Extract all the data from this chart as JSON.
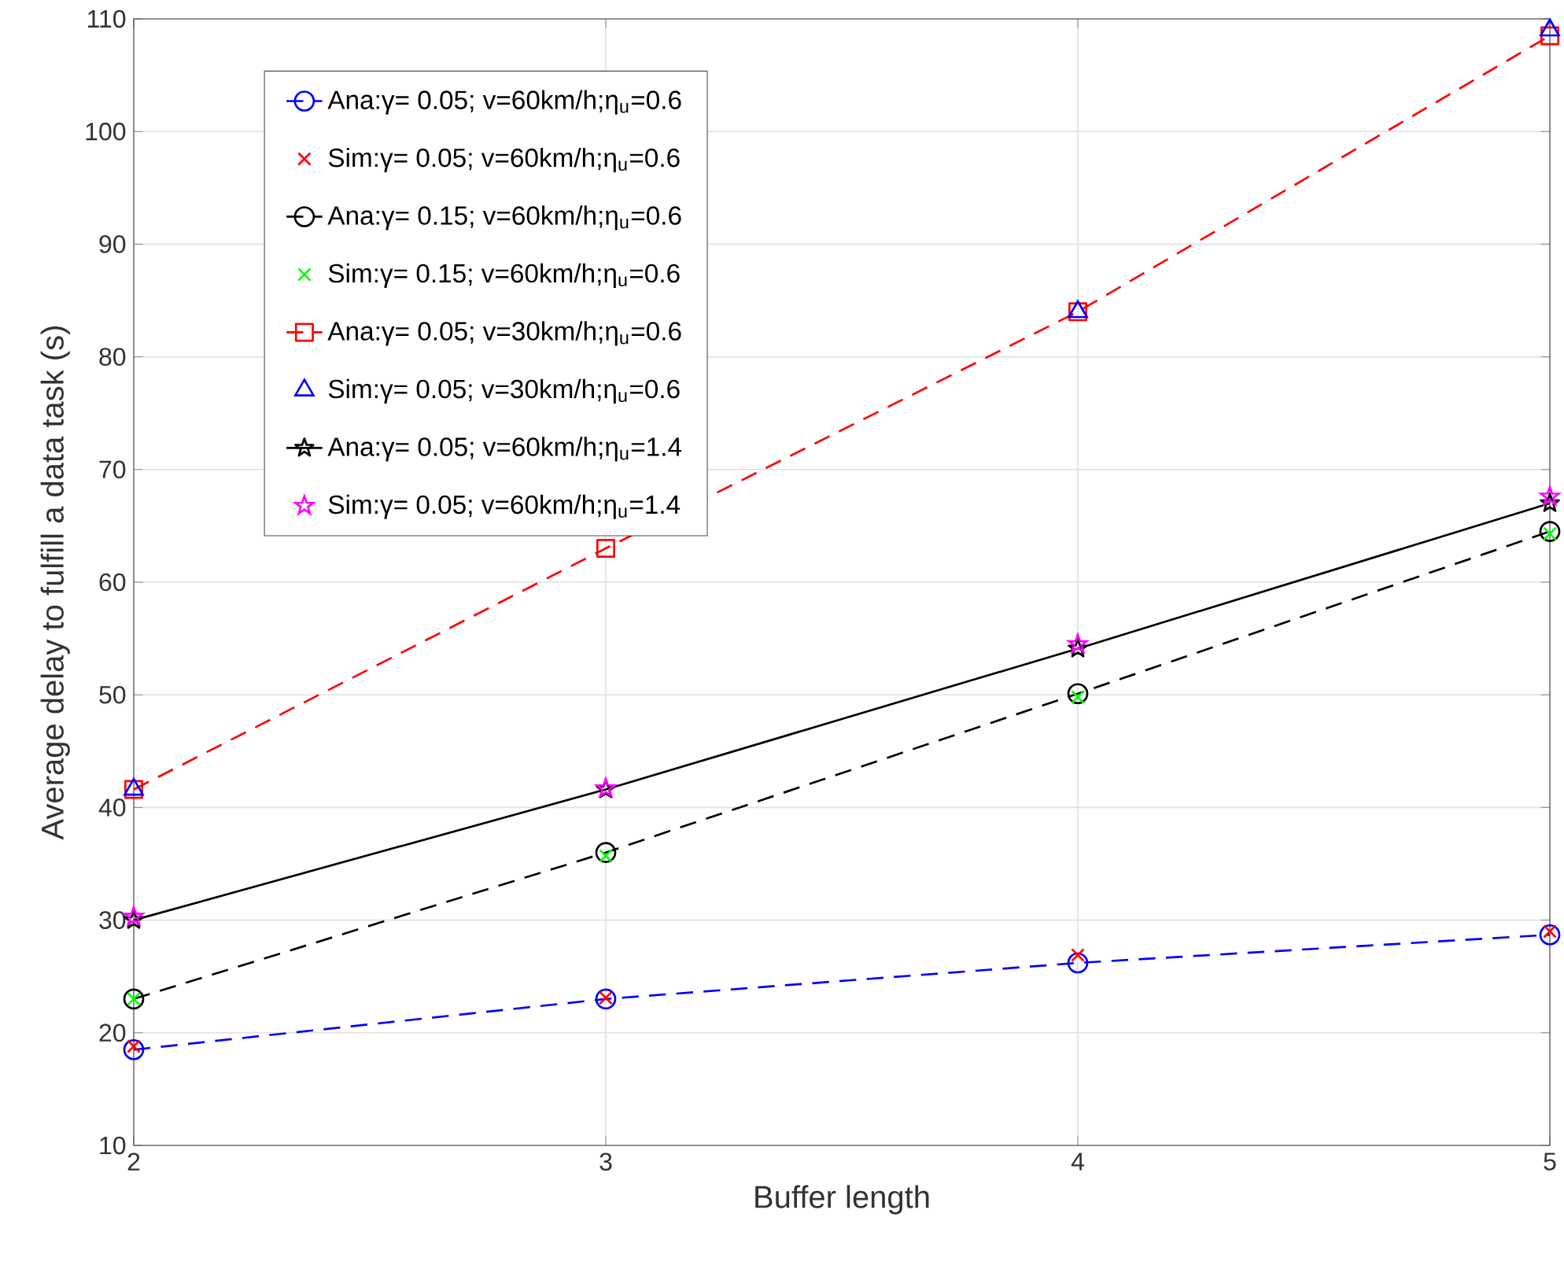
{
  "chart_data": {
    "type": "line",
    "xlabel": "Buffer length",
    "ylabel": "Average delay to fulfill a data task (s)",
    "x": [
      2,
      3,
      4,
      5
    ],
    "xlim": [
      2,
      5
    ],
    "xticks": [
      2,
      3,
      4,
      5
    ],
    "ylim": [
      10,
      110
    ],
    "yticks": [
      10,
      20,
      30,
      40,
      50,
      60,
      70,
      80,
      90,
      100,
      110
    ],
    "grid": true,
    "legend": "top left",
    "series": [
      {
        "name": "Ana:γ= 0.05; v=60km/h;η$_{u}$=0.6",
        "color": "#0000ff",
        "marker": "circle",
        "line_style": "dashed",
        "values": [
          18.5,
          23.0,
          26.2,
          28.7
        ]
      },
      {
        "name": "Sim:γ= 0.05; v=60km/h;η$_{u}$=0.6",
        "type": "scatter",
        "color": "#ff0000",
        "marker": "cross",
        "values": [
          18.8,
          23.1,
          26.9,
          29.0
        ]
      },
      {
        "name": "Ana:γ= 0.15; v=60km/h;η$_{u}$=0.6",
        "color": "#000000",
        "marker": "circle",
        "line_style": "dashed",
        "values": [
          23.0,
          36.0,
          50.1,
          64.5
        ]
      },
      {
        "name": "Sim:γ= 0.15; v=60km/h;η$_{u}$=0.6",
        "type": "scatter",
        "color": "#00ff00",
        "marker": "cross",
        "values": [
          23.0,
          35.7,
          49.8,
          64.3
        ]
      },
      {
        "name": "Ana:γ= 0.05; v=30km/h;η$_{u}$=0.6",
        "color": "#ff0000",
        "marker": "square",
        "line_style": "dashed",
        "values": [
          41.6,
          63.0,
          84.0,
          108.5
        ]
      },
      {
        "name": "Sim:γ= 0.05; v=30km/h;η$_{u}$=0.6",
        "type": "scatter",
        "color": "#0000ff",
        "marker": "triangle",
        "values": [
          41.6,
          null,
          84.0,
          109.0
        ]
      },
      {
        "name": "Ana:γ= 0.05; v=60km/h;η$_{u}$=1.4",
        "color": "#000000",
        "marker": "star",
        "line_style": "solid",
        "values": [
          30.0,
          41.6,
          54.1,
          67.0
        ]
      },
      {
        "name": "Sim:γ= 0.05; v=60km/h;η$_{u}$=1.4",
        "type": "scatter",
        "color": "#ff00ff",
        "marker": "star",
        "values": [
          30.3,
          41.7,
          54.5,
          67.6
        ]
      }
    ]
  }
}
